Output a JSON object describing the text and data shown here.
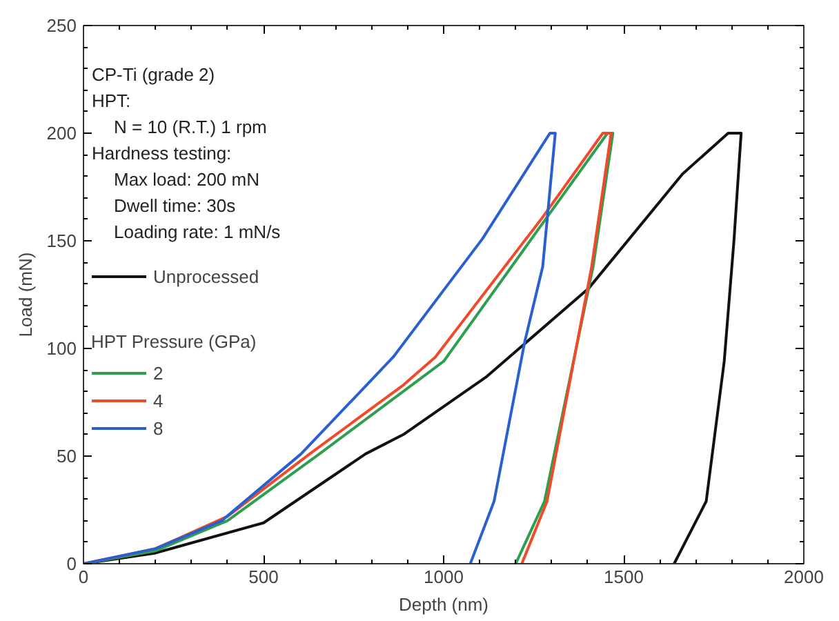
{
  "chart_data": {
    "type": "line",
    "xlabel": "Depth (nm)",
    "ylabel": "Load (mN)",
    "xlim": [
      0,
      2000
    ],
    "ylim": [
      0,
      250
    ],
    "xticks": [
      0,
      500,
      1000,
      1500,
      2000
    ],
    "yticks": [
      0,
      50,
      100,
      150,
      200,
      250
    ],
    "grid": false,
    "legend": "left",
    "legend_title": "HPT Pressure (GPa)",
    "line_style": "solid",
    "marker": "none",
    "annotations": [
      "CP-Ti (grade 2)",
      "HPT:",
      "N = 10 (R.T.) 1 rpm",
      "Hardness testing:",
      "Max load: 200 mN",
      "Dwell time: 30s",
      "Loading rate: 1 mN/s"
    ],
    "series": [
      {
        "name": "Unprocessed",
        "color": "#111111",
        "x": [
          0,
          200,
          500,
          783,
          888,
          1120,
          1403,
          1663,
          1790,
          1826,
          1806,
          1779,
          1729,
          1640
        ],
        "values": [
          0,
          5,
          19,
          51,
          60,
          87,
          128,
          181,
          200,
          200,
          150,
          94,
          29,
          0
        ]
      },
      {
        "name": "2",
        "color": "#2e9e4f",
        "x": [
          0,
          200,
          400,
          655,
          1000,
          1270,
          1455,
          1470,
          1415,
          1280,
          1200
        ],
        "values": [
          0,
          6,
          20,
          51,
          94,
          157,
          200,
          200,
          138,
          29,
          0
        ]
      },
      {
        "name": "4",
        "color": "#f04a2a",
        "x": [
          0,
          200,
          400,
          628,
          888,
          977,
          1275,
          1442,
          1465,
          1411,
          1287,
          1217
        ],
        "values": [
          0,
          7,
          22,
          51,
          83,
          96,
          161,
          200,
          200,
          138,
          29,
          0
        ]
      },
      {
        "name": "8",
        "color": "#2a5fd0",
        "x": [
          0,
          200,
          384,
          604,
          860,
          1108,
          1295,
          1310,
          1275,
          1225,
          1140,
          1074
        ],
        "values": [
          0,
          7,
          20,
          51,
          96,
          151,
          200,
          200,
          138,
          103,
          29,
          0
        ]
      }
    ]
  }
}
